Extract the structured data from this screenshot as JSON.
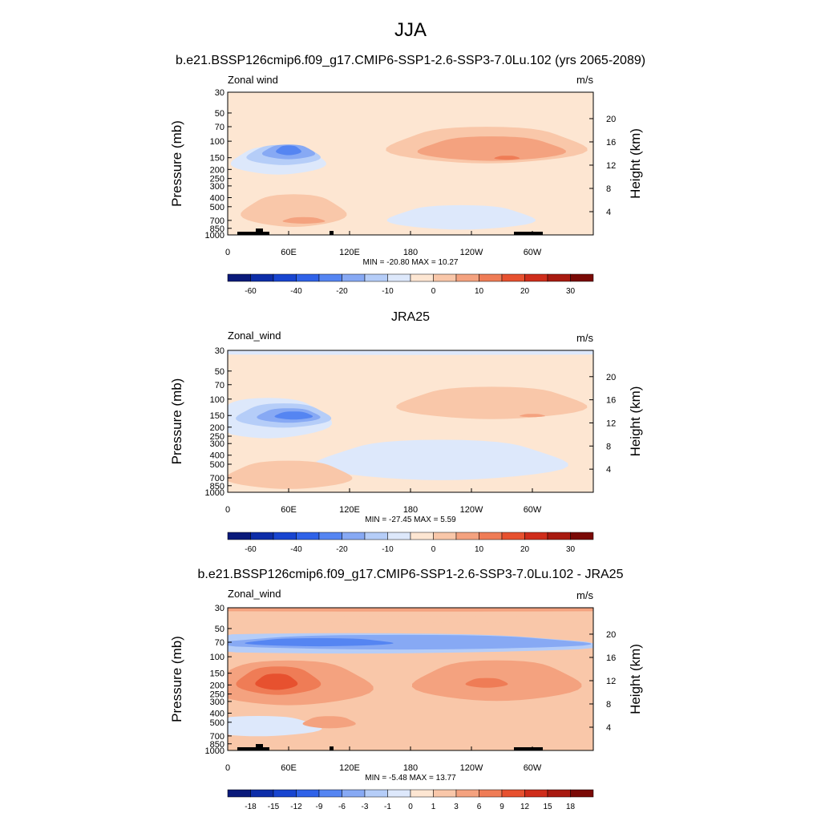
{
  "figure": {
    "title": "JJA"
  },
  "palettes": {
    "wind": [
      "#0a1a7a",
      "#0d2da8",
      "#1845d0",
      "#2f62e8",
      "#5585f2",
      "#87a9f4",
      "#b5cdf8",
      "#dde8fb",
      "#fde6d2",
      "#f9c7a9",
      "#f4a27f",
      "#ef7c56",
      "#e7512f",
      "#cf2d1b",
      "#a81a10",
      "#7a0a06"
    ],
    "diff": [
      "#0a1a7a",
      "#0d2da8",
      "#1845d0",
      "#2f62e8",
      "#5585f2",
      "#87a9f4",
      "#b5cdf8",
      "#dde8fb",
      "#fde6d2",
      "#f9c7a9",
      "#f4a27f",
      "#ef7c56",
      "#e7512f",
      "#cf2d1b",
      "#a81a10",
      "#7a0a06"
    ]
  },
  "chart_data": [
    {
      "type": "heatmap",
      "panel": "top",
      "title": "b.e21.BSSP126cmip6.f09_g17.CMIP6-SSP1-2.6-SSP3-7.0Lu.102 (yrs 2065-2089)",
      "left_label": "Zonal wind",
      "units": "m/s",
      "ylabel": "Pressure (mb)",
      "ylabel_right": "Height (km)",
      "x_ticks": [
        "0",
        "60E",
        "120E",
        "180",
        "120W",
        "60W"
      ],
      "y_ticks": [
        "30",
        "50",
        "70",
        "100",
        "150",
        "200",
        "250",
        "300",
        "400",
        "500",
        "700",
        "850",
        "1000"
      ],
      "right_ticks": [
        "20",
        "16",
        "12",
        "8",
        "4"
      ],
      "stats": "MIN = -20.80  MAX =  10.27",
      "colorbar_labels": [
        "-60",
        "-40",
        "-20",
        "-10",
        "0",
        "10",
        "20",
        "30"
      ],
      "min": -20.8,
      "max": 10.27
    },
    {
      "type": "heatmap",
      "panel": "middle",
      "title": "JRA25",
      "left_label": "Zonal_wind",
      "units": "m/s",
      "ylabel": "Pressure (mb)",
      "ylabel_right": "Height (km)",
      "x_ticks": [
        "0",
        "60E",
        "120E",
        "180",
        "120W",
        "60W"
      ],
      "y_ticks": [
        "30",
        "50",
        "70",
        "100",
        "150",
        "200",
        "250",
        "300",
        "400",
        "500",
        "700",
        "850",
        "1000"
      ],
      "right_ticks": [
        "20",
        "16",
        "12",
        "8",
        "4"
      ],
      "stats": "MIN = -27.45  MAX =   5.59",
      "colorbar_labels": [
        "-60",
        "-40",
        "-20",
        "-10",
        "0",
        "10",
        "20",
        "30"
      ],
      "min": -27.45,
      "max": 5.59
    },
    {
      "type": "heatmap",
      "panel": "bottom",
      "title": "b.e21.BSSP126cmip6.f09_g17.CMIP6-SSP1-2.6-SSP3-7.0Lu.102 - JRA25",
      "left_label": "Zonal_wind",
      "units": "m/s",
      "ylabel": "Pressure (mb)",
      "ylabel_right": "Height (km)",
      "x_ticks": [
        "0",
        "60E",
        "120E",
        "180",
        "120W",
        "60W"
      ],
      "y_ticks": [
        "30",
        "50",
        "70",
        "100",
        "150",
        "200",
        "250",
        "300",
        "400",
        "500",
        "700",
        "850",
        "1000"
      ],
      "right_ticks": [
        "20",
        "16",
        "12",
        "8",
        "4"
      ],
      "stats": "MIN =  -5.48  MAX =  13.77",
      "colorbar_labels": [
        "-18",
        "-15",
        "-12",
        "-9",
        "-6",
        "-3",
        "-1",
        "0",
        "1",
        "3",
        "6",
        "9",
        "12",
        "15",
        "18"
      ],
      "min": -5.48,
      "max": 13.77
    }
  ]
}
